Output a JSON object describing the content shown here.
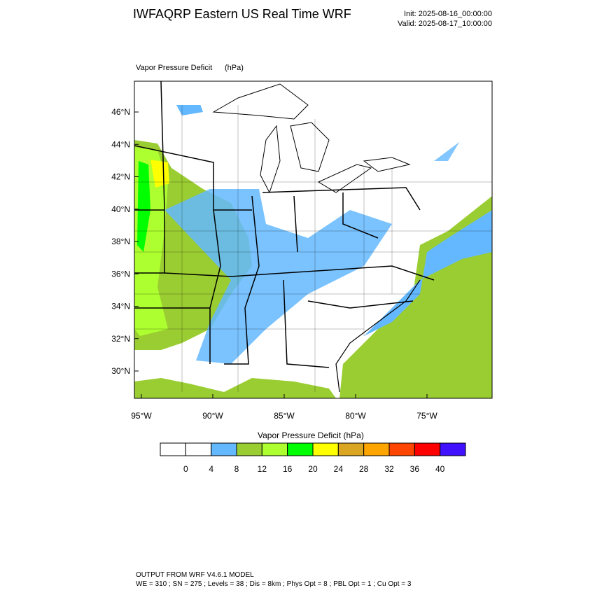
{
  "header": {
    "title": "IWFAQRP Eastern US Real Time WRF",
    "init": "Init: 2025-08-16_00:00:00",
    "valid": "Valid: 2025-08-17_10:00:00"
  },
  "map": {
    "field_label": "Vapor Pressure Deficit",
    "units": "(hPa)",
    "lat_labels": [
      "46°N",
      "44°N",
      "42°N",
      "40°N",
      "38°N",
      "36°N",
      "34°N",
      "32°N",
      "30°N"
    ],
    "lon_labels": [
      "95°W",
      "90°W",
      "85°W",
      "80°W",
      "75°W"
    ]
  },
  "colorbar": {
    "title": "Vapor Pressure Deficit  (hPa)",
    "colors": [
      "#ffffff",
      "#ffffff",
      "#63b8ff",
      "#9acd32",
      "#adff2f",
      "#00ff00",
      "#ffff00",
      "#daa520",
      "#ffa500",
      "#ff4500",
      "#ff0000",
      "#4010ff"
    ],
    "ticks": [
      0,
      4,
      8,
      12,
      16,
      20,
      24,
      28,
      32,
      36,
      40
    ]
  },
  "footer": {
    "line1": "OUTPUT FROM WRF V4.6.1 MODEL",
    "line2": "WE = 310 ; SN = 275 ; Levels = 38 ; Dis = 8km ; Phys Opt = 8 ; PBL Opt = 1 ; Cu Opt = 3"
  }
}
